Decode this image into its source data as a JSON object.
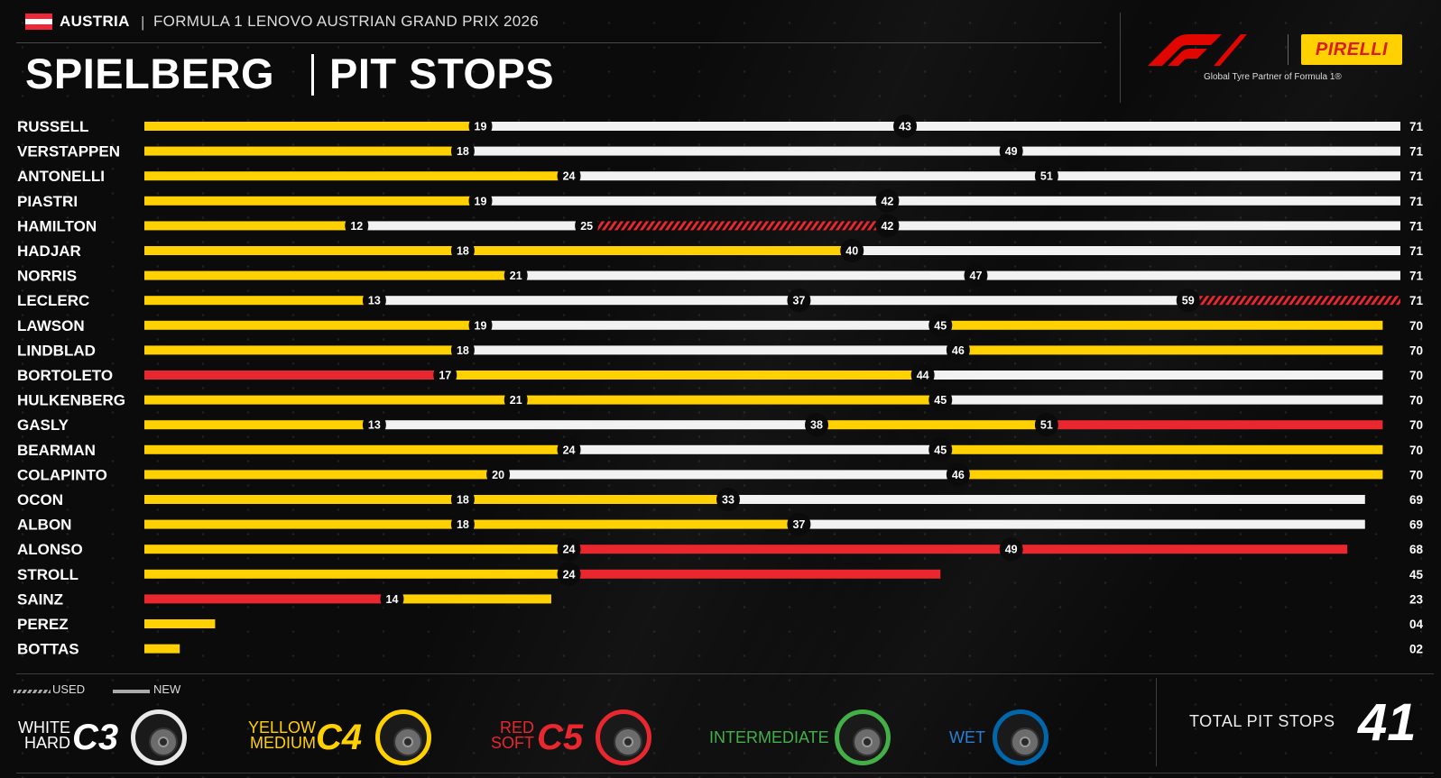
{
  "header": {
    "country": "AUSTRIA",
    "separator": "|",
    "event": "FORMULA 1 LENOVO AUSTRIAN GRAND PRIX 2026",
    "title_left": "SPIELBERG",
    "title_right": "PIT STOPS",
    "partner_text": "Global Tyre Partner of Formula 1®",
    "pirelli_text": "PIRELLI",
    "flag_colors": [
      "#ed2939",
      "#ffffff",
      "#ed2939"
    ]
  },
  "compound_colors": {
    "hard": "#f2f2f2",
    "medium": "#FFD100",
    "soft": "#e8272f",
    "intermediate": "#43b047",
    "wet": "#0067ad"
  },
  "chart_data": {
    "type": "bar",
    "orientation": "horizontal",
    "x_unit": "lap",
    "xlim": [
      0,
      71
    ],
    "drivers": [
      {
        "name": "RUSSELL",
        "stints": [
          {
            "compound": "medium",
            "end": 19,
            "used": false
          },
          {
            "compound": "hard",
            "end": 43,
            "used": false
          },
          {
            "compound": "hard",
            "end": 71,
            "used": false
          }
        ],
        "final": "71"
      },
      {
        "name": "VERSTAPPEN",
        "stints": [
          {
            "compound": "medium",
            "end": 18,
            "used": false
          },
          {
            "compound": "hard",
            "end": 49,
            "used": false
          },
          {
            "compound": "hard",
            "end": 71,
            "used": false
          }
        ],
        "final": "71"
      },
      {
        "name": "ANTONELLI",
        "stints": [
          {
            "compound": "medium",
            "end": 24,
            "used": false
          },
          {
            "compound": "hard",
            "end": 51,
            "used": false
          },
          {
            "compound": "hard",
            "end": 71,
            "used": false
          }
        ],
        "final": "71"
      },
      {
        "name": "PIASTRI",
        "stints": [
          {
            "compound": "medium",
            "end": 19,
            "used": false
          },
          {
            "compound": "hard",
            "end": 42,
            "used": false
          },
          {
            "compound": "hard",
            "end": 71,
            "used": false
          }
        ],
        "final": "71"
      },
      {
        "name": "HAMILTON",
        "stints": [
          {
            "compound": "medium",
            "end": 12,
            "used": false
          },
          {
            "compound": "hard",
            "end": 25,
            "used": false
          },
          {
            "compound": "soft",
            "end": 42,
            "used": true
          },
          {
            "compound": "hard",
            "end": 71,
            "used": false
          }
        ],
        "final": "71"
      },
      {
        "name": "HADJAR",
        "stints": [
          {
            "compound": "medium",
            "end": 18,
            "used": false
          },
          {
            "compound": "medium",
            "end": 40,
            "used": false
          },
          {
            "compound": "hard",
            "end": 71,
            "used": false
          }
        ],
        "final": "71"
      },
      {
        "name": "NORRIS",
        "stints": [
          {
            "compound": "medium",
            "end": 21,
            "used": false
          },
          {
            "compound": "hard",
            "end": 47,
            "used": false
          },
          {
            "compound": "hard",
            "end": 71,
            "used": false
          }
        ],
        "final": "71"
      },
      {
        "name": "LECLERC",
        "stints": [
          {
            "compound": "medium",
            "end": 13,
            "used": false
          },
          {
            "compound": "hard",
            "end": 37,
            "used": false
          },
          {
            "compound": "hard",
            "end": 59,
            "used": false
          },
          {
            "compound": "soft",
            "end": 71,
            "used": true
          }
        ],
        "final": "71"
      },
      {
        "name": "LAWSON",
        "stints": [
          {
            "compound": "medium",
            "end": 19,
            "used": false
          },
          {
            "compound": "hard",
            "end": 45,
            "used": false
          },
          {
            "compound": "medium",
            "end": 70,
            "used": false
          }
        ],
        "final": "70"
      },
      {
        "name": "LINDBLAD",
        "stints": [
          {
            "compound": "medium",
            "end": 18,
            "used": false
          },
          {
            "compound": "hard",
            "end": 46,
            "used": false
          },
          {
            "compound": "medium",
            "end": 70,
            "used": false
          }
        ],
        "final": "70"
      },
      {
        "name": "BORTOLETO",
        "stints": [
          {
            "compound": "soft",
            "end": 17,
            "used": false
          },
          {
            "compound": "medium",
            "end": 44,
            "used": false
          },
          {
            "compound": "hard",
            "end": 70,
            "used": false
          }
        ],
        "final": "70"
      },
      {
        "name": "HULKENBERG",
        "stints": [
          {
            "compound": "medium",
            "end": 21,
            "used": false
          },
          {
            "compound": "medium",
            "end": 45,
            "used": false
          },
          {
            "compound": "hard",
            "end": 70,
            "used": false
          }
        ],
        "final": "70"
      },
      {
        "name": "GASLY",
        "stints": [
          {
            "compound": "medium",
            "end": 13,
            "used": false
          },
          {
            "compound": "hard",
            "end": 38,
            "used": false
          },
          {
            "compound": "medium",
            "end": 51,
            "used": false
          },
          {
            "compound": "soft",
            "end": 70,
            "used": false
          }
        ],
        "final": "70"
      },
      {
        "name": "BEARMAN",
        "stints": [
          {
            "compound": "medium",
            "end": 24,
            "used": false
          },
          {
            "compound": "hard",
            "end": 45,
            "used": false
          },
          {
            "compound": "medium",
            "end": 70,
            "used": false
          }
        ],
        "final": "70"
      },
      {
        "name": "COLAPINTO",
        "stints": [
          {
            "compound": "medium",
            "end": 20,
            "used": false
          },
          {
            "compound": "hard",
            "end": 46,
            "used": false
          },
          {
            "compound": "medium",
            "end": 70,
            "used": false
          }
        ],
        "final": "70"
      },
      {
        "name": "OCON",
        "stints": [
          {
            "compound": "medium",
            "end": 18,
            "used": false
          },
          {
            "compound": "medium",
            "end": 33,
            "used": false
          },
          {
            "compound": "hard",
            "end": 69,
            "used": false
          }
        ],
        "final": "69"
      },
      {
        "name": "ALBON",
        "stints": [
          {
            "compound": "medium",
            "end": 18,
            "used": false
          },
          {
            "compound": "medium",
            "end": 37,
            "used": false
          },
          {
            "compound": "hard",
            "end": 69,
            "used": false
          }
        ],
        "final": "69"
      },
      {
        "name": "ALONSO",
        "stints": [
          {
            "compound": "medium",
            "end": 24,
            "used": false
          },
          {
            "compound": "soft",
            "end": 49,
            "used": false
          },
          {
            "compound": "soft",
            "end": 68,
            "used": false
          }
        ],
        "final": "68"
      },
      {
        "name": "STROLL",
        "stints": [
          {
            "compound": "medium",
            "end": 24,
            "used": false
          },
          {
            "compound": "soft",
            "end": 45,
            "used": false
          }
        ],
        "final": "45"
      },
      {
        "name": "SAINZ",
        "stints": [
          {
            "compound": "soft",
            "end": 14,
            "used": false
          },
          {
            "compound": "medium",
            "end": 23,
            "used": false
          }
        ],
        "final": "23"
      },
      {
        "name": "PEREZ",
        "stints": [
          {
            "compound": "medium",
            "end": 4,
            "used": false
          }
        ],
        "final": "04"
      },
      {
        "name": "BOTTAS",
        "stints": [
          {
            "compound": "medium",
            "end": 2,
            "used": false
          }
        ],
        "final": "02"
      }
    ]
  },
  "legend": {
    "used_label": "USED",
    "new_label": "NEW",
    "hard_color": "WHITE",
    "hard_name": "HARD",
    "hard_code": "C3",
    "medium_color": "YELLOW",
    "medium_name": "MEDIUM",
    "medium_code": "C4",
    "soft_color": "RED",
    "soft_name": "SOFT",
    "soft_code": "C5",
    "intermediate": "INTERMEDIATE",
    "wet": "WET"
  },
  "total": {
    "label": "TOTAL PIT STOPS",
    "value": "41"
  }
}
